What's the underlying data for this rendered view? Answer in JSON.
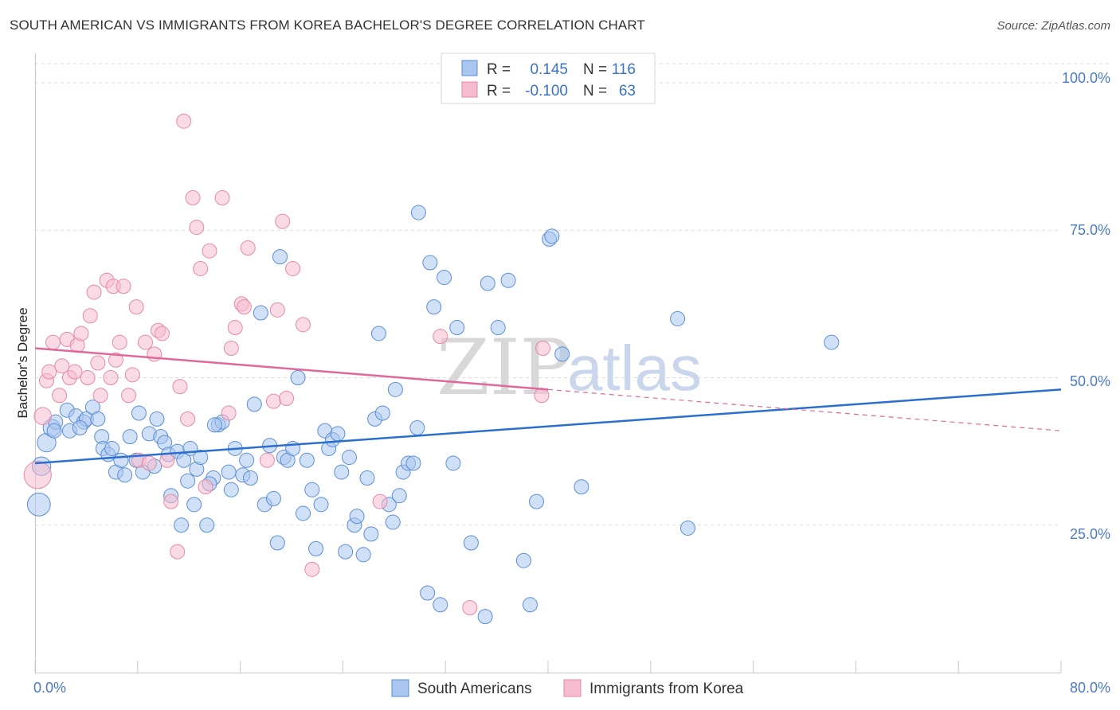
{
  "title": "SOUTH AMERICAN VS IMMIGRANTS FROM KOREA BACHELOR'S DEGREE CORRELATION CHART",
  "source": "Source: ZipAtlas.com",
  "colors": {
    "blue_fill": "#a9c6ee",
    "blue_stroke": "#5b8fd6",
    "blue_line": "#2a6fd0",
    "pink_fill": "#f6bccd",
    "pink_stroke": "#e58aa6",
    "pink_line": "#e0689a",
    "grid": "#dddddd",
    "tick_text": "#4a7ac8"
  },
  "stats_legend": [
    {
      "r_label": "R =",
      "r_value": "0.145",
      "n_label": "N =",
      "n_value": "116"
    },
    {
      "r_label": "R =",
      "r_value": "-0.100",
      "n_label": "N =",
      "n_value": "63"
    }
  ],
  "watermark": {
    "part1": "ZIP",
    "part2": "atlas"
  },
  "chart_data": {
    "type": "scatter",
    "title": "SOUTH AMERICAN VS IMMIGRANTS FROM KOREA BACHELOR'S DEGREE CORRELATION CHART",
    "xlabel": "",
    "ylabel": "Bachelor's Degree",
    "xlim": [
      0,
      80
    ],
    "ylim": [
      0,
      105
    ],
    "x_tick_labels": [
      "0.0%",
      "80.0%"
    ],
    "y_ticks": [
      25,
      50,
      75,
      100
    ],
    "y_tick_labels": [
      "25.0%",
      "50.0%",
      "75.0%",
      "100.0%"
    ],
    "grid": true,
    "legend_position": "bottom-center",
    "series": [
      {
        "name": "South Americans",
        "color": "#a9c6ee",
        "trend": {
          "x": [
            0,
            80
          ],
          "y": [
            35.5,
            48.0
          ],
          "dashed_from": null
        },
        "points": [
          [
            0.3,
            28.5,
            1.6
          ],
          [
            0.5,
            35,
            1.3
          ],
          [
            0.9,
            39,
            1.3
          ],
          [
            1.3,
            41.5,
            1.2
          ],
          [
            1.6,
            42.5,
            1
          ],
          [
            1.5,
            41,
            1
          ],
          [
            2.5,
            44.5,
            1
          ],
          [
            2.7,
            41,
            1
          ],
          [
            3.2,
            43.5,
            1
          ],
          [
            3.8,
            42.5,
            1
          ],
          [
            4,
            43,
            1
          ],
          [
            3.5,
            41.5,
            1
          ],
          [
            4.5,
            45,
            1
          ],
          [
            5.2,
            40,
            1
          ],
          [
            4.9,
            43,
            1
          ],
          [
            5.3,
            38,
            1
          ],
          [
            5.7,
            37,
            1
          ],
          [
            6.3,
            34,
            1
          ],
          [
            6.7,
            36,
            1
          ],
          [
            7,
            33.5,
            1
          ],
          [
            7.4,
            40,
            1
          ],
          [
            7.9,
            36,
            1
          ],
          [
            8.1,
            44,
            1
          ],
          [
            8.4,
            34,
            1
          ],
          [
            8.9,
            40.5,
            1
          ],
          [
            9.3,
            35,
            1
          ],
          [
            9.5,
            43,
            1
          ],
          [
            9.8,
            40,
            1
          ],
          [
            10.1,
            39,
            1
          ],
          [
            10.4,
            37,
            1
          ],
          [
            10.6,
            30,
            1
          ],
          [
            11.1,
            37.5,
            1
          ],
          [
            11.4,
            25,
            1
          ],
          [
            11.6,
            36,
            1
          ],
          [
            11.9,
            32.5,
            1
          ],
          [
            12.1,
            38,
            1
          ],
          [
            12.4,
            28.5,
            1
          ],
          [
            12.6,
            34.5,
            1
          ],
          [
            12.9,
            36.5,
            1
          ],
          [
            13.4,
            25,
            1
          ],
          [
            13.9,
            33,
            1
          ],
          [
            13.6,
            32,
            1
          ],
          [
            14.3,
            42,
            1
          ],
          [
            14.6,
            42.5,
            1
          ],
          [
            15.1,
            34,
            1
          ],
          [
            15.3,
            31,
            1
          ],
          [
            15.6,
            38,
            1
          ],
          [
            16.2,
            33.5,
            1
          ],
          [
            16.5,
            36,
            1
          ],
          [
            16.8,
            33,
            1
          ],
          [
            17.1,
            45.5,
            1
          ],
          [
            17.6,
            61,
            1
          ],
          [
            17.9,
            28.5,
            1
          ],
          [
            18.3,
            38.5,
            1
          ],
          [
            18.6,
            29.5,
            1
          ],
          [
            18.9,
            22,
            1
          ],
          [
            19.1,
            70.5,
            1
          ],
          [
            19.4,
            36.5,
            1
          ],
          [
            19.7,
            36,
            1
          ],
          [
            20.1,
            38,
            1
          ],
          [
            20.5,
            50,
            1
          ],
          [
            20.9,
            27,
            1
          ],
          [
            21.2,
            36,
            1
          ],
          [
            21.6,
            31,
            1
          ],
          [
            21.9,
            21,
            1
          ],
          [
            22.3,
            28.5,
            1
          ],
          [
            22.6,
            41,
            1
          ],
          [
            22.9,
            38,
            1
          ],
          [
            23.2,
            39.5,
            1
          ],
          [
            23.6,
            40.5,
            1
          ],
          [
            23.9,
            34,
            1
          ],
          [
            24.2,
            20.5,
            1
          ],
          [
            24.5,
            36.5,
            1
          ],
          [
            24.9,
            25,
            1
          ],
          [
            25.1,
            26.5,
            1
          ],
          [
            25.6,
            20,
            1
          ],
          [
            25.9,
            33,
            1
          ],
          [
            26.2,
            23.5,
            1
          ],
          [
            26.5,
            43,
            1
          ],
          [
            26.8,
            57.5,
            1
          ],
          [
            27.1,
            44,
            1
          ],
          [
            27.6,
            28.5,
            1
          ],
          [
            27.9,
            25.5,
            1
          ],
          [
            28.1,
            48,
            1
          ],
          [
            28.4,
            30,
            1
          ],
          [
            28.7,
            34,
            1
          ],
          [
            29.1,
            35.5,
            1
          ],
          [
            29.5,
            35.5,
            1
          ],
          [
            29.8,
            41.5,
            1
          ],
          [
            29.9,
            78,
            1
          ],
          [
            30.6,
            13.5,
            1
          ],
          [
            30.8,
            69.5,
            1
          ],
          [
            31.1,
            62,
            1
          ],
          [
            31.6,
            11.5,
            1
          ],
          [
            31.9,
            67,
            1
          ],
          [
            32.6,
            35.5,
            1
          ],
          [
            32.9,
            58.5,
            1
          ],
          [
            35.1,
            9.5,
            1
          ],
          [
            35.3,
            66,
            1
          ],
          [
            36.1,
            58.5,
            1
          ],
          [
            36.9,
            66.5,
            1
          ],
          [
            38.1,
            19,
            1
          ],
          [
            38.6,
            11.5,
            1
          ],
          [
            39.1,
            29,
            1
          ],
          [
            40.1,
            73.5,
            1
          ],
          [
            40.3,
            74,
            1
          ],
          [
            41.1,
            54,
            1
          ],
          [
            42.6,
            31.5,
            1
          ],
          [
            50.1,
            60,
            1
          ],
          [
            50.9,
            24.5,
            1
          ],
          [
            62.1,
            56,
            1
          ],
          [
            6,
            38,
            1
          ],
          [
            14,
            42,
            1
          ],
          [
            34,
            22,
            1
          ]
        ]
      },
      {
        "name": "Immigrants from Korea",
        "color": "#f6bccd",
        "trend": {
          "x": [
            0,
            80
          ],
          "y": [
            55.0,
            41.0
          ],
          "dashed_from": 40
        },
        "points": [
          [
            0.2,
            33.5,
            1.9
          ],
          [
            0.6,
            43.5,
            1.2
          ],
          [
            0.9,
            49.5,
            1
          ],
          [
            1.1,
            51,
            1
          ],
          [
            1.4,
            56,
            1
          ],
          [
            1.9,
            47,
            1
          ],
          [
            2.1,
            52,
            1
          ],
          [
            2.5,
            56.5,
            1
          ],
          [
            2.7,
            50,
            1
          ],
          [
            3.1,
            51,
            1
          ],
          [
            3.3,
            55.5,
            1
          ],
          [
            3.6,
            57.5,
            1
          ],
          [
            4.1,
            50,
            1
          ],
          [
            4.3,
            60.5,
            1
          ],
          [
            4.6,
            64.5,
            1
          ],
          [
            4.9,
            52.5,
            1
          ],
          [
            5.1,
            47,
            1
          ],
          [
            5.6,
            66.5,
            1
          ],
          [
            5.9,
            50,
            1
          ],
          [
            6.1,
            65.5,
            1
          ],
          [
            6.3,
            53,
            1
          ],
          [
            6.6,
            56,
            1
          ],
          [
            6.9,
            65.5,
            1
          ],
          [
            7.3,
            47,
            1
          ],
          [
            7.6,
            50.5,
            1
          ],
          [
            7.9,
            62,
            1
          ],
          [
            8.1,
            36,
            1
          ],
          [
            8.6,
            56,
            1
          ],
          [
            8.9,
            35.5,
            1
          ],
          [
            9.3,
            54,
            1
          ],
          [
            9.6,
            58,
            1
          ],
          [
            9.9,
            57.5,
            1
          ],
          [
            10.3,
            36,
            1
          ],
          [
            10.6,
            29,
            1
          ],
          [
            11.1,
            20.5,
            1
          ],
          [
            11.3,
            48.5,
            1
          ],
          [
            11.6,
            93.5,
            1
          ],
          [
            11.9,
            43,
            1
          ],
          [
            12.3,
            80.5,
            1
          ],
          [
            12.6,
            75.5,
            1
          ],
          [
            12.9,
            68.5,
            1
          ],
          [
            13.3,
            31.5,
            1
          ],
          [
            13.6,
            71.5,
            1
          ],
          [
            14.6,
            80.5,
            1
          ],
          [
            15.1,
            44,
            1
          ],
          [
            15.3,
            55,
            1
          ],
          [
            15.6,
            58.5,
            1
          ],
          [
            16.1,
            62.5,
            1
          ],
          [
            16.3,
            62,
            1
          ],
          [
            16.6,
            72,
            1
          ],
          [
            18.1,
            36,
            1
          ],
          [
            18.6,
            46,
            1
          ],
          [
            18.9,
            61.5,
            1
          ],
          [
            19.3,
            76.5,
            1
          ],
          [
            19.6,
            46.5,
            1
          ],
          [
            20.1,
            68.5,
            1
          ],
          [
            20.9,
            59,
            1
          ],
          [
            21.6,
            17.5,
            1
          ],
          [
            26.9,
            29,
            1
          ],
          [
            31.6,
            57,
            1
          ],
          [
            33.9,
            11,
            1
          ],
          [
            39.6,
            55,
            1
          ],
          [
            39.5,
            47,
            1
          ]
        ]
      }
    ]
  },
  "bottom_legend": [
    {
      "label": "South Americans"
    },
    {
      "label": "Immigrants from Korea"
    }
  ]
}
